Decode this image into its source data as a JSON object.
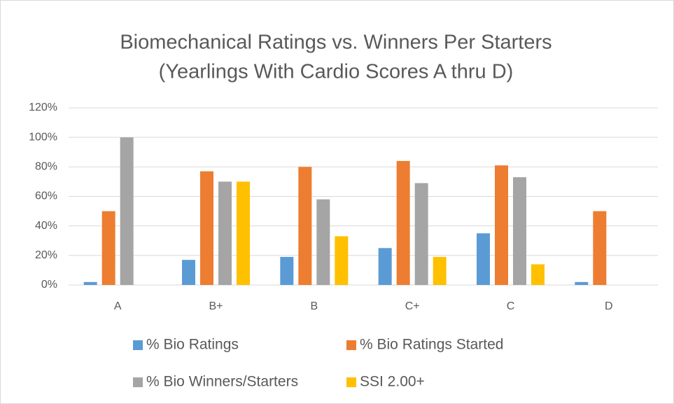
{
  "chart_data": {
    "type": "bar",
    "title": "Biomechanical Ratings vs. Winners Per Starters",
    "subtitle": "(Yearlings With Cardio Scores A thru D)",
    "categories": [
      "A",
      "B+",
      "B",
      "C+",
      "C",
      "D"
    ],
    "series": [
      {
        "name": "% Bio Ratings",
        "color": "#5b9bd5",
        "values": [
          2,
          17,
          19,
          25,
          35,
          2
        ]
      },
      {
        "name": "% Bio Ratings Started",
        "color": "#ed7d31",
        "values": [
          50,
          77,
          80,
          84,
          81,
          50
        ]
      },
      {
        "name": "% Bio Winners/Starters",
        "color": "#a5a5a5",
        "values": [
          100,
          70,
          58,
          69,
          73,
          0
        ]
      },
      {
        "name": "SSI 2.00+",
        "color": "#ffc000",
        "values": [
          0,
          70,
          33,
          19,
          14,
          0
        ]
      }
    ],
    "ylim": [
      0,
      120
    ],
    "yticks": [
      {
        "value": 0,
        "label": "0%"
      },
      {
        "value": 20,
        "label": "20%"
      },
      {
        "value": 40,
        "label": "40%"
      },
      {
        "value": 60,
        "label": "60%"
      },
      {
        "value": 80,
        "label": "80%"
      },
      {
        "value": 100,
        "label": "100%"
      },
      {
        "value": 120,
        "label": "120%"
      }
    ],
    "grid": true,
    "legend": "bottom"
  }
}
